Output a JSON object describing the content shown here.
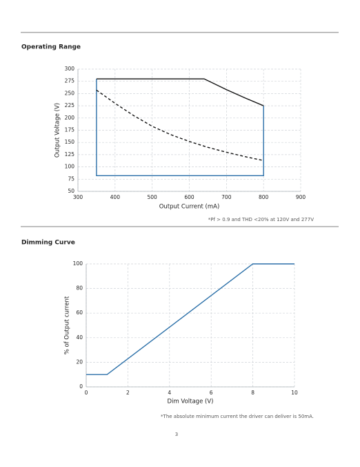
{
  "sections": [
    {
      "title": "Operating Range",
      "chart_data": {
        "type": "line",
        "x_label": "Output Current (mA)",
        "y_label": "Output Voltage (V)",
        "xlim": [
          300,
          900
        ],
        "xticks": [
          300,
          400,
          500,
          600,
          700,
          800,
          900
        ],
        "ylim": [
          50,
          300
        ],
        "yticks": [
          50,
          75,
          100,
          125,
          150,
          175,
          200,
          225,
          250,
          275,
          300
        ],
        "grid": true,
        "series": [
          {
            "color": "#2a6fa8",
            "dashed": false,
            "x": [
              350,
              350,
              800,
              800
            ],
            "values": [
              280,
              82,
              82,
              225
            ]
          },
          {
            "color": "#111111",
            "dashed": false,
            "x": [
              350,
              640,
              700,
              750,
              800
            ],
            "values": [
              280,
              280,
              258,
              241,
              225
            ]
          },
          {
            "color": "#111111",
            "dashed": true,
            "x": [
              350,
              400,
              450,
              500,
              550,
              600,
              650,
              700,
              750,
              800
            ],
            "values": [
              257,
              230,
              205,
              183,
              166,
              152,
              140,
              130,
              121,
              113
            ]
          }
        ]
      },
      "footnote": "*Pf > 0.9 and THD <20% at 120V and 277V"
    },
    {
      "title": "Dimming Curve",
      "chart_data": {
        "type": "line",
        "x_label": "Dim Voltage (V)",
        "y_label": "% of Output current",
        "xlim": [
          0,
          10
        ],
        "xticks": [
          0,
          2,
          4,
          6,
          8,
          10
        ],
        "ylim": [
          0,
          100
        ],
        "yticks": [
          0,
          20,
          40,
          60,
          80,
          100
        ],
        "grid": true,
        "series": [
          {
            "color": "#2a6fa8",
            "dashed": false,
            "x": [
              0,
              1,
              8,
              10
            ],
            "values": [
              10,
              10,
              100,
              100
            ]
          }
        ]
      },
      "footnote": "*The absolute minimum current the driver can deliver is 50mA."
    }
  ],
  "page_number": "3"
}
